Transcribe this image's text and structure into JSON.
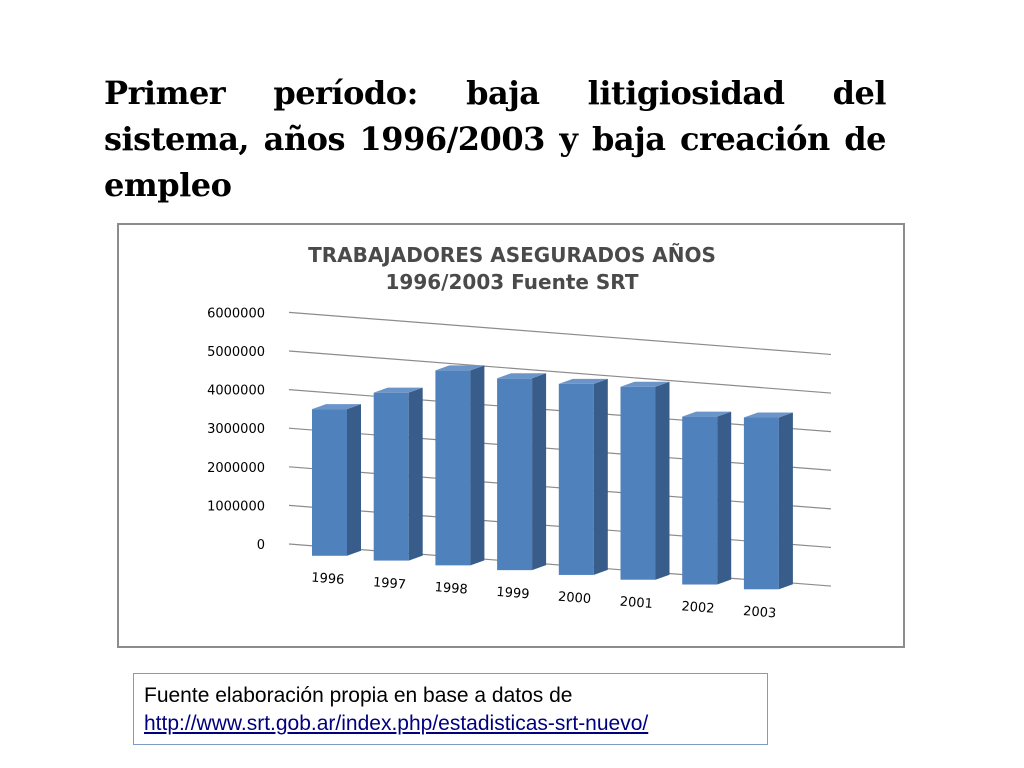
{
  "slide": {
    "title": "Primer período: baja litigiosidad del sistema, años 1996/2003 y baja creación de empleo"
  },
  "source": {
    "text": "Fuente elaboración propia en base a datos de",
    "link": "http://www.srt.gob.ar/index.php/estadisticas-srt-nuevo/"
  },
  "colors": {
    "bar_front": "#4f81bd",
    "bar_side": "#385d8a",
    "bar_top": "#6b95c9",
    "gridline": "#8c8c8c"
  },
  "chart_data": {
    "type": "bar",
    "style": "3d-column",
    "title_lines": [
      "TRABAJADORES ASEGURADOS AÑOS",
      "1996/2003 Fuente SRT"
    ],
    "categories": [
      "1996",
      "1997",
      "1998",
      "1999",
      "2000",
      "2001",
      "2002",
      "2003"
    ],
    "values": [
      3800000,
      4350000,
      5050000,
      4970000,
      4950000,
      5000000,
      4350000,
      4450000
    ],
    "yticks": [
      "0",
      "1000000",
      "2000000",
      "3000000",
      "4000000",
      "5000000",
      "6000000"
    ],
    "ylim": [
      0,
      6000000
    ],
    "grid": true,
    "legend": "none"
  }
}
